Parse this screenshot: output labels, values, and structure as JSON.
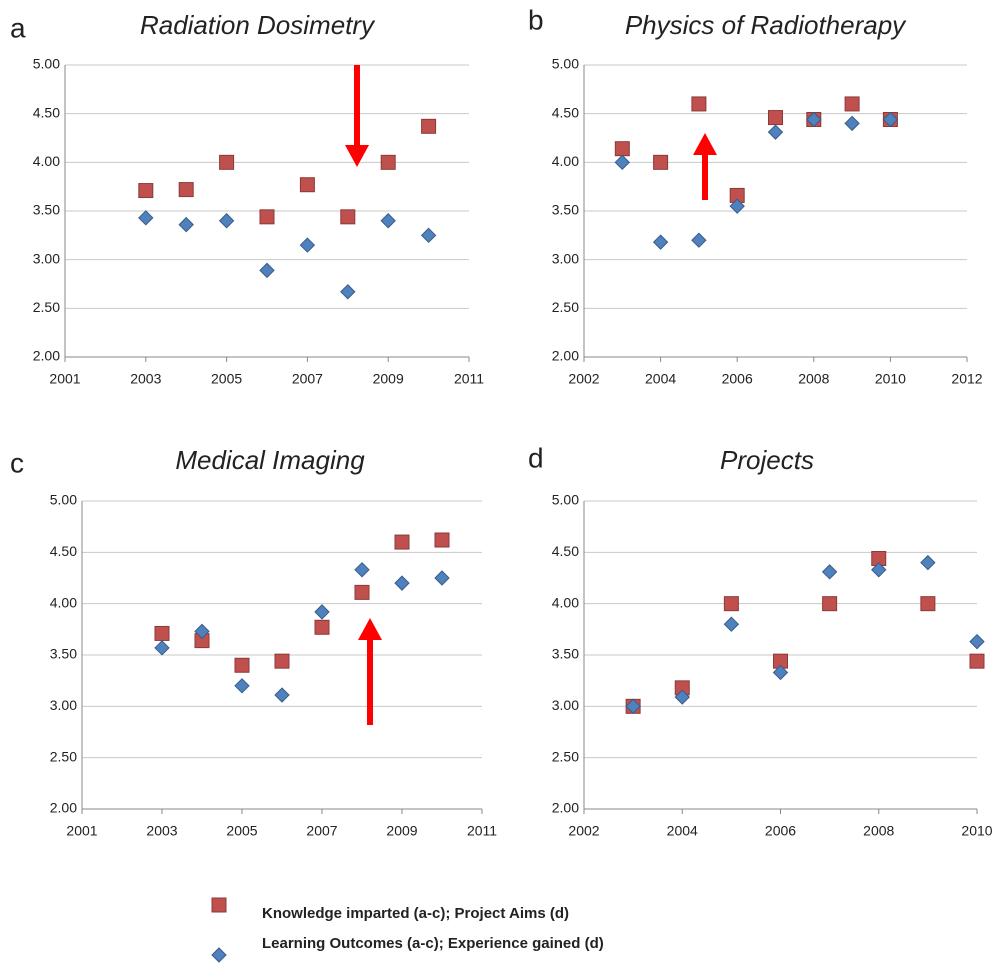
{
  "chart_data": [
    {
      "type": "scatter",
      "label": "a",
      "title": "Radiation Dosimetry",
      "x": [
        2003,
        2004,
        2005,
        2006,
        2007,
        2008,
        2009,
        2010
      ],
      "series": [
        {
          "color": "#c0504d",
          "marker": "square",
          "values": [
            3.71,
            3.72,
            4.0,
            3.44,
            3.77,
            3.44,
            4.0,
            4.37
          ]
        },
        {
          "color": "#4f81bd",
          "marker": "diamond",
          "values": [
            3.43,
            3.36,
            3.4,
            2.89,
            3.15,
            2.67,
            3.4,
            3.25
          ]
        }
      ],
      "xlim": [
        2001,
        2011
      ],
      "xticks": [
        2001,
        2003,
        2005,
        2007,
        2009,
        2011
      ],
      "ylim": [
        2,
        5
      ],
      "yticks": [
        {
          "value": 2,
          "label": "2.00"
        },
        {
          "value": 2.5,
          "label": "2.50"
        },
        {
          "value": 3,
          "label": "3.00"
        },
        {
          "value": 3.5,
          "label": "3.50"
        },
        {
          "value": 4,
          "label": "4.00"
        },
        {
          "value": 4.5,
          "label": "4.50"
        },
        {
          "value": 5,
          "label": "5.00"
        }
      ],
      "grid": true
    },
    {
      "type": "scatter",
      "label": "b",
      "title": "Physics of Radiotherapy",
      "x": [
        2003,
        2004,
        2005,
        2006,
        2007,
        2008,
        2009,
        2010
      ],
      "series": [
        {
          "color": "#c0504d",
          "marker": "square",
          "values": [
            4.14,
            4.0,
            4.6,
            3.66,
            4.46,
            4.44,
            4.6,
            4.44
          ]
        },
        {
          "color": "#4f81bd",
          "marker": "diamond",
          "values": [
            4.0,
            3.18,
            3.2,
            3.55,
            4.31,
            4.44,
            4.4,
            4.44
          ]
        }
      ],
      "xlim": [
        2002,
        2012
      ],
      "xticks": [
        2002,
        2004,
        2006,
        2008,
        2010,
        2012
      ],
      "ylim": [
        2,
        5
      ],
      "yticks": [
        {
          "value": 2,
          "label": "2.00"
        },
        {
          "value": 2.5,
          "label": "2.50"
        },
        {
          "value": 3,
          "label": "3.00"
        },
        {
          "value": 3.5,
          "label": "3.50"
        },
        {
          "value": 4,
          "label": "4.00"
        },
        {
          "value": 4.5,
          "label": "4.50"
        },
        {
          "value": 5,
          "label": "5.00"
        }
      ],
      "grid": true
    },
    {
      "type": "scatter",
      "label": "c",
      "title": "Medical Imaging",
      "x": [
        2003,
        2004,
        2005,
        2006,
        2007,
        2008,
        2009,
        2010
      ],
      "series": [
        {
          "color": "#c0504d",
          "marker": "square",
          "values": [
            3.71,
            3.64,
            3.4,
            3.44,
            3.77,
            4.11,
            4.6,
            4.62
          ]
        },
        {
          "color": "#4f81bd",
          "marker": "diamond",
          "values": [
            3.57,
            3.73,
            3.2,
            3.11,
            3.92,
            4.33,
            4.2,
            4.25
          ]
        }
      ],
      "xlim": [
        2001,
        2011
      ],
      "xticks": [
        2001,
        2003,
        2005,
        2007,
        2009,
        2011
      ],
      "ylim": [
        2,
        5
      ],
      "yticks": [
        {
          "value": 2,
          "label": "2.00"
        },
        {
          "value": 2.5,
          "label": "2.50"
        },
        {
          "value": 3,
          "label": "3.00"
        },
        {
          "value": 3.5,
          "label": "3.50"
        },
        {
          "value": 4,
          "label": "4.00"
        },
        {
          "value": 4.5,
          "label": "4.50"
        },
        {
          "value": 5,
          "label": "5.00"
        }
      ],
      "grid": true
    },
    {
      "type": "scatter",
      "label": "d",
      "title": "Projects",
      "x": [
        2003,
        2004,
        2005,
        2006,
        2007,
        2008,
        2009,
        2010
      ],
      "series": [
        {
          "color": "#c0504d",
          "marker": "square",
          "values": [
            3.0,
            3.18,
            4.0,
            3.44,
            4.0,
            4.44,
            4.0,
            3.44
          ]
        },
        {
          "color": "#4f81bd",
          "marker": "diamond",
          "values": [
            3.0,
            3.09,
            3.8,
            3.33,
            4.31,
            4.33,
            4.4,
            3.63
          ]
        }
      ],
      "xlim": [
        2002,
        2010
      ],
      "xticks": [
        2002,
        2004,
        2006,
        2008,
        2010
      ],
      "ylim": [
        2,
        5
      ],
      "yticks": [
        {
          "value": 2,
          "label": "2.00"
        },
        {
          "value": 2.5,
          "label": "2.50"
        },
        {
          "value": 3,
          "label": "3.00"
        },
        {
          "value": 3.5,
          "label": "3.50"
        },
        {
          "value": 4,
          "label": "4.00"
        },
        {
          "value": 4.5,
          "label": "4.50"
        },
        {
          "value": 5,
          "label": "5.00"
        }
      ],
      "grid": true
    }
  ],
  "legend": {
    "entries": [
      {
        "name": "Knowledge imparted (a-c); Project Aims (d)",
        "marker": "square"
      },
      {
        "name": "Learning Outcomes (a-c); Experience gained (d)",
        "marker": "diamond"
      }
    ]
  }
}
